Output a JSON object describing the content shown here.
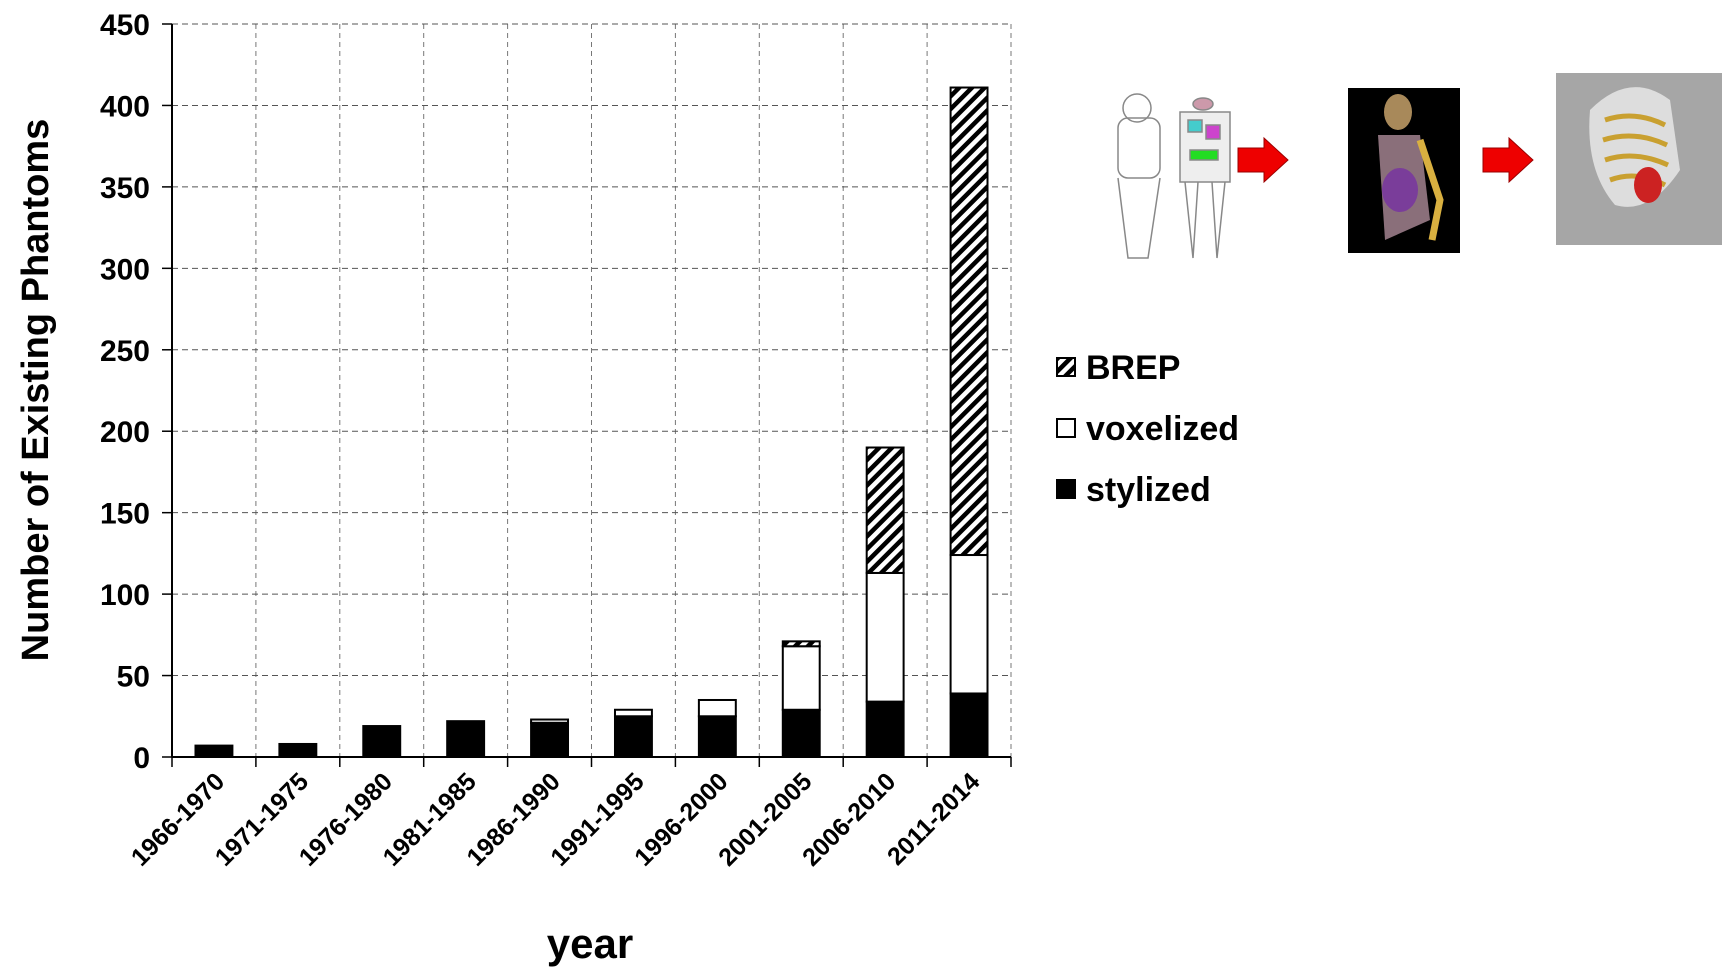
{
  "chart_data": {
    "type": "stacked-bar",
    "y_label": "Number of Existing Phantoms",
    "x_label": "year",
    "categories": [
      "1966-1970",
      "1971-1975",
      "1976-1980",
      "1981-1985",
      "1986-1990",
      "1991-1995",
      "1996-2000",
      "2001-2005",
      "2006-2010",
      "2011-2014"
    ],
    "series": [
      {
        "name": "stylized",
        "color": "#000000",
        "values": [
          7,
          8,
          19,
          22,
          21,
          25,
          25,
          29,
          34,
          39
        ]
      },
      {
        "name": "voxelized",
        "color": "#ffffff",
        "values": [
          0,
          0,
          0,
          0,
          2,
          4,
          10,
          39,
          79,
          85
        ]
      },
      {
        "name": "BREP",
        "color": "#000000",
        "hatch": true,
        "values": [
          0,
          0,
          0,
          0,
          0,
          0,
          0,
          3,
          77,
          287
        ]
      }
    ],
    "ylim": [
      0,
      450
    ],
    "yticks": [
      0,
      50,
      100,
      150,
      200,
      250,
      300,
      350,
      400,
      450
    ],
    "grid": true
  }
}
